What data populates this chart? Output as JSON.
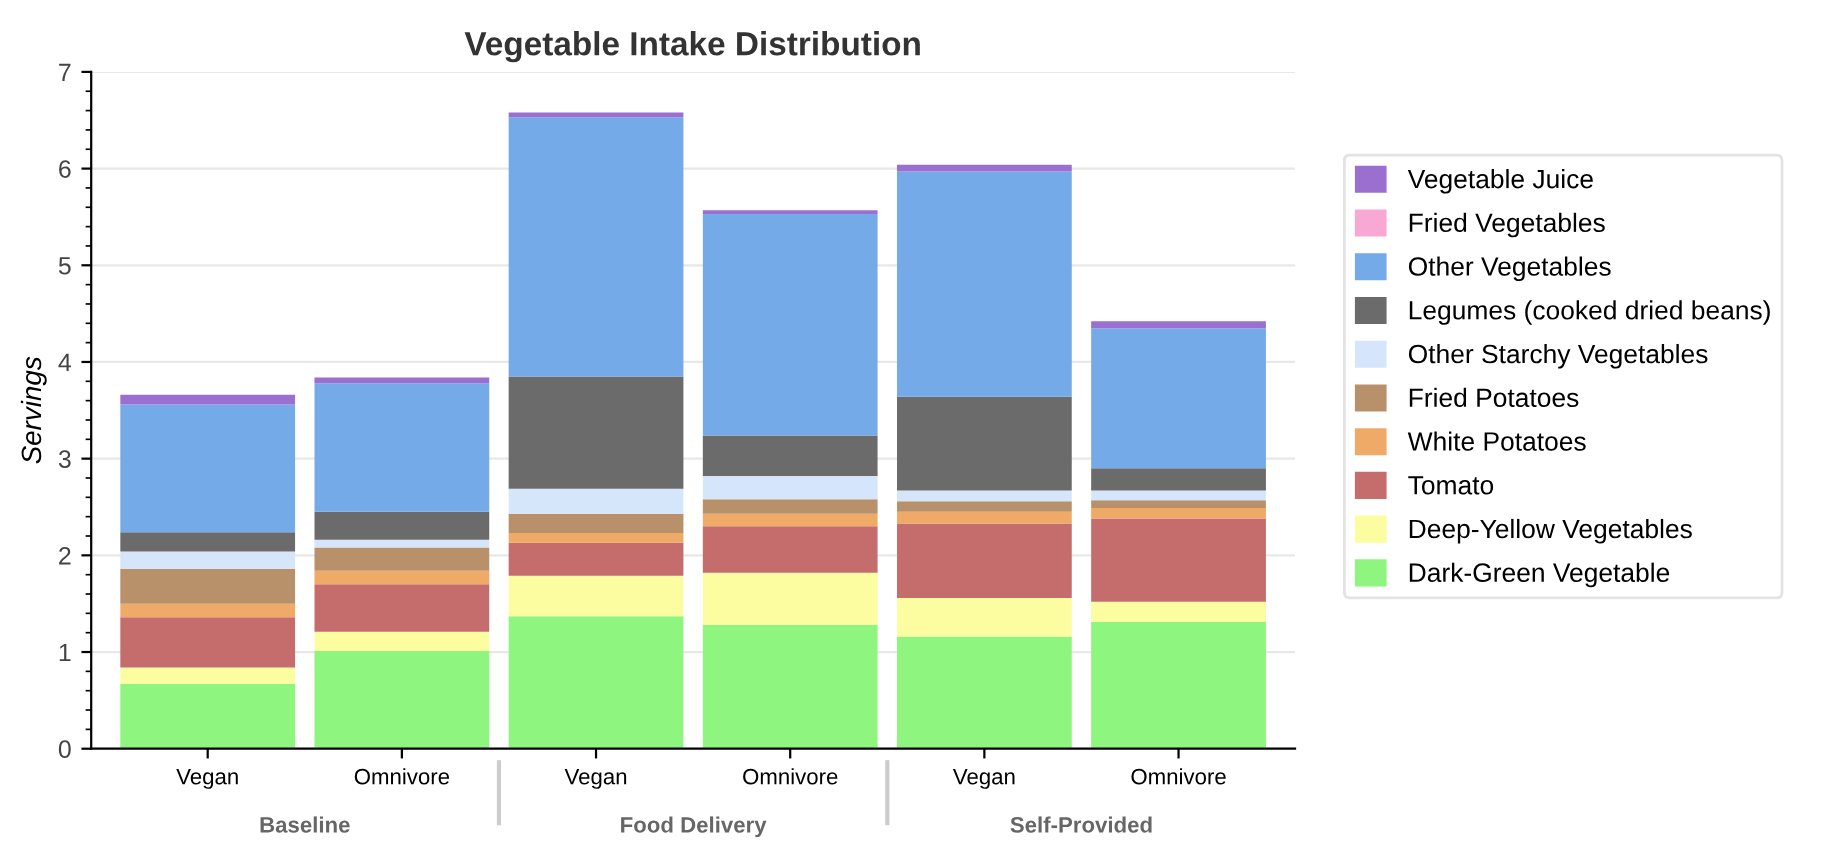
{
  "chart_data": {
    "type": "bar",
    "title": "Vegetable Intake Distribution",
    "ylabel": "Servings",
    "categories": [
      "Vegan",
      "Omnivore",
      "Vegan",
      "Omnivore",
      "Vegan",
      "Omnivore"
    ],
    "annotations": [
      "Baseline",
      "Food Delivery",
      "Self-Provided"
    ],
    "stacked": true,
    "ylim": [
      0,
      7
    ],
    "yticks": [
      0,
      1,
      2,
      3,
      4,
      5,
      6,
      7
    ],
    "grid": "y",
    "legend": "right",
    "series": [
      {
        "name": "Dark-Green Vegetable",
        "color": "#8ef57e",
        "values": [
          0.67,
          1.01,
          1.37,
          1.28,
          1.16,
          1.31
        ]
      },
      {
        "name": "Deep-Yellow Vegetables",
        "color": "#fcfca0",
        "values": [
          0.17,
          0.2,
          0.42,
          0.54,
          0.4,
          0.21
        ]
      },
      {
        "name": "Tomato",
        "color": "#c56c6c",
        "values": [
          0.52,
          0.49,
          0.34,
          0.48,
          0.77,
          0.86
        ]
      },
      {
        "name": "White Potatoes",
        "color": "#eeaa66",
        "values": [
          0.14,
          0.14,
          0.1,
          0.13,
          0.12,
          0.11
        ]
      },
      {
        "name": "Fried Potatoes",
        "color": "#b8916a",
        "values": [
          0.36,
          0.24,
          0.2,
          0.15,
          0.11,
          0.08
        ]
      },
      {
        "name": "Other Starchy Vegetables",
        "color": "#d6e6fa",
        "values": [
          0.18,
          0.08,
          0.26,
          0.24,
          0.11,
          0.1
        ]
      },
      {
        "name": "Legumes (cooked dried beans)",
        "color": "#6b6b6b",
        "values": [
          0.2,
          0.29,
          1.16,
          0.42,
          0.97,
          0.23
        ]
      },
      {
        "name": "Other Vegetables",
        "color": "#74aae8",
        "values": [
          1.32,
          1.33,
          2.68,
          2.29,
          2.33,
          1.45
        ]
      },
      {
        "name": "Fried Vegetables",
        "color": "#f9a8d4",
        "values": [
          0,
          0,
          0,
          0,
          0,
          0
        ]
      },
      {
        "name": "Vegetable Juice",
        "color": "#9a6fcf",
        "values": [
          0.1,
          0.06,
          0.05,
          0.04,
          0.07,
          0.07
        ]
      }
    ]
  }
}
